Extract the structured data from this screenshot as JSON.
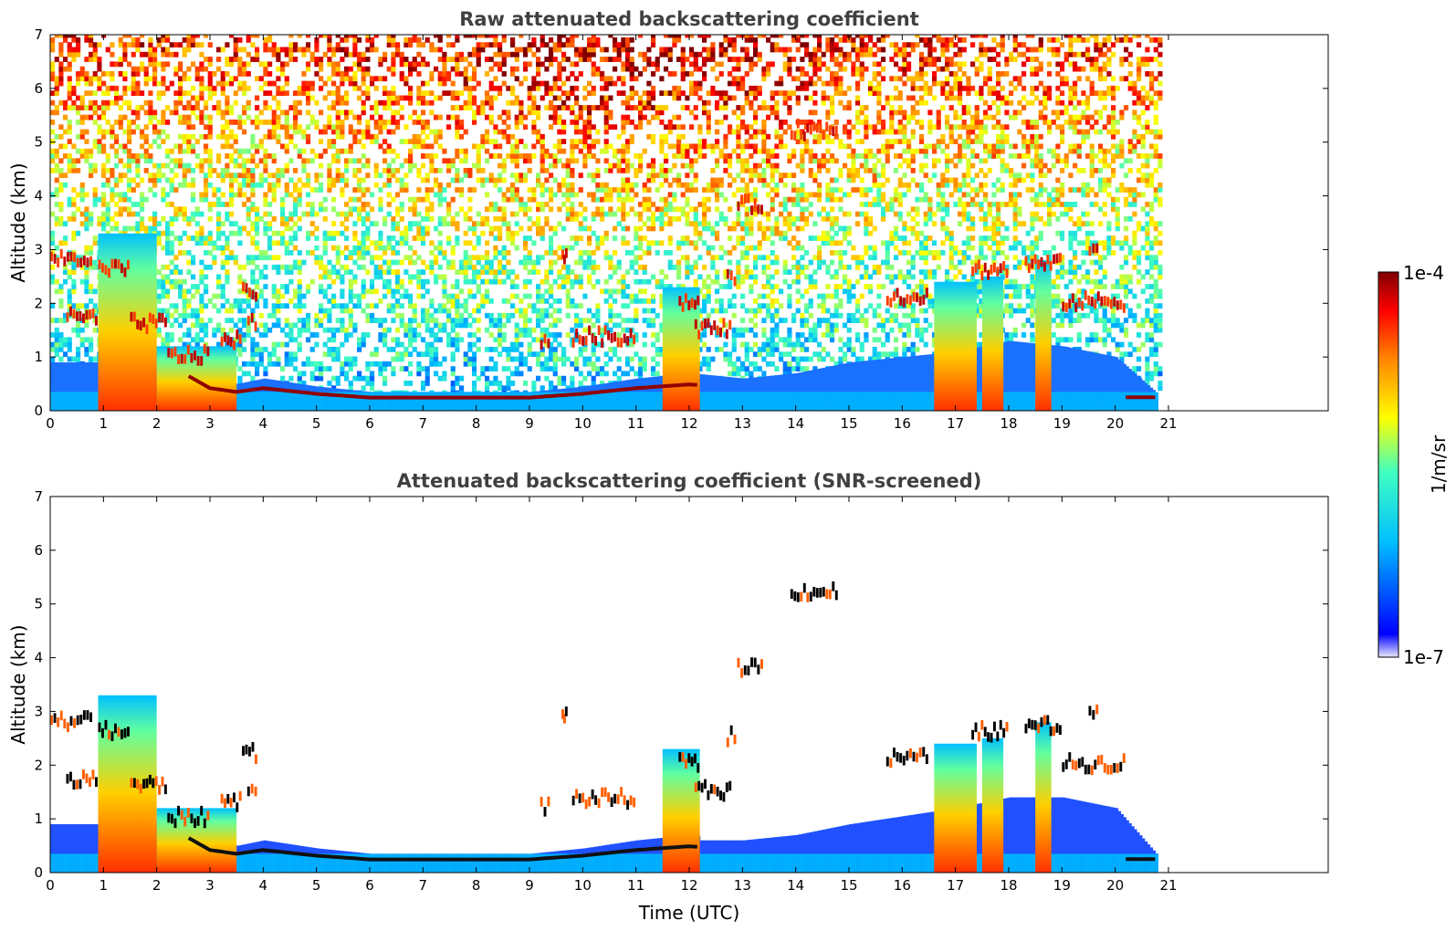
{
  "chart_data": [
    {
      "type": "heatmap",
      "title": "Raw attenuated backscattering coefficient",
      "xlabel": "",
      "ylabel": "Altitude (km)",
      "xlim": [
        0,
        24
      ],
      "ylim": [
        0,
        7
      ],
      "xticks": [
        "0",
        "1",
        "2",
        "3",
        "4",
        "5",
        "6",
        "7",
        "8",
        "9",
        "10",
        "11",
        "12",
        "13",
        "14",
        "15",
        "16",
        "17",
        "18",
        "19",
        "20",
        "21"
      ],
      "yticks": [
        "0",
        "1",
        "2",
        "3",
        "4",
        "5",
        "6",
        "7"
      ],
      "data_extent_x": [
        0,
        20.8
      ],
      "boundary_layer_top_km": [
        [
          0,
          0.9
        ],
        [
          1,
          0.9
        ],
        [
          2,
          1.0
        ],
        [
          2.5,
          1.0
        ],
        [
          3,
          0.6
        ],
        [
          3.5,
          0.5
        ],
        [
          4,
          0.6
        ],
        [
          5,
          0.45
        ],
        [
          6,
          0.35
        ],
        [
          7,
          0.35
        ],
        [
          8,
          0.35
        ],
        [
          9,
          0.35
        ],
        [
          10,
          0.45
        ],
        [
          11,
          0.6
        ],
        [
          12,
          0.7
        ],
        [
          13,
          0.6
        ],
        [
          14,
          0.7
        ],
        [
          15,
          0.9
        ],
        [
          16,
          1.0
        ],
        [
          17,
          1.1
        ],
        [
          18,
          1.3
        ],
        [
          19,
          1.2
        ],
        [
          20,
          1.0
        ],
        [
          20.8,
          0.3
        ]
      ],
      "cloud_features": [
        {
          "x0": 0,
          "x1": 0.8,
          "alt_km": 2.8
        },
        {
          "x0": 0.3,
          "x1": 0.9,
          "alt_km": 1.7
        },
        {
          "x0": 0.9,
          "x1": 1.5,
          "alt_km": 2.6
        },
        {
          "x0": 1.5,
          "x1": 2.2,
          "alt_km": 1.6
        },
        {
          "x0": 2.2,
          "x1": 3.0,
          "alt_km": 1.0
        },
        {
          "x0": 3.2,
          "x1": 3.6,
          "alt_km": 1.3
        },
        {
          "x0": 3.7,
          "x1": 3.9,
          "alt_km": 1.6
        },
        {
          "x0": 3.6,
          "x1": 3.9,
          "alt_km": 2.2
        },
        {
          "x0": 9.2,
          "x1": 9.4,
          "alt_km": 1.2
        },
        {
          "x0": 9.8,
          "x1": 11.0,
          "alt_km": 1.35
        },
        {
          "x0": 11.8,
          "x1": 12.2,
          "alt_km": 2.0
        },
        {
          "x0": 12.1,
          "x1": 12.8,
          "alt_km": 1.5
        },
        {
          "x0": 12.7,
          "x1": 12.9,
          "alt_km": 2.5
        },
        {
          "x0": 12.9,
          "x1": 13.4,
          "alt_km": 3.8
        },
        {
          "x0": 13.9,
          "x1": 14.8,
          "alt_km": 5.2
        },
        {
          "x0": 9.6,
          "x1": 9.7,
          "alt_km": 2.9
        },
        {
          "x0": 15.7,
          "x1": 16.5,
          "alt_km": 2.1
        },
        {
          "x0": 17.3,
          "x1": 18.0,
          "alt_km": 2.6
        },
        {
          "x0": 18.3,
          "x1": 19.0,
          "alt_km": 2.7
        },
        {
          "x0": 19.0,
          "x1": 20.2,
          "alt_km": 2.0
        },
        {
          "x0": 19.5,
          "x1": 19.7,
          "alt_km": 3.0
        }
      ],
      "intense_columns": [
        {
          "x0": 0.9,
          "x1": 2.0,
          "top_km": 3.3
        },
        {
          "x0": 2.0,
          "x1": 3.5,
          "top_km": 1.2
        },
        {
          "x0": 11.5,
          "x1": 12.2,
          "top_km": 2.3
        },
        {
          "x0": 16.6,
          "x1": 17.4,
          "top_km": 2.4
        },
        {
          "x0": 17.5,
          "x1": 17.9,
          "top_km": 2.5
        },
        {
          "x0": 18.5,
          "x1": 18.8,
          "top_km": 2.8
        }
      ]
    },
    {
      "type": "heatmap",
      "title": "Attenuated backscattering coefficient (SNR-screened)",
      "xlabel": "Time (UTC)",
      "ylabel": "Altitude (km)",
      "xlim": [
        0,
        24
      ],
      "ylim": [
        0,
        7
      ],
      "xticks": [
        "0",
        "1",
        "2",
        "3",
        "4",
        "5",
        "6",
        "7",
        "8",
        "9",
        "10",
        "11",
        "12",
        "13",
        "14",
        "15",
        "16",
        "17",
        "18",
        "19",
        "20",
        "21"
      ],
      "yticks": [
        "0",
        "1",
        "2",
        "3",
        "4",
        "5",
        "6",
        "7"
      ],
      "data_extent_x": [
        0,
        20.8
      ],
      "screened_blue_layer": [
        [
          12.2,
          0.6
        ],
        [
          13,
          0.6
        ],
        [
          14,
          0.7
        ],
        [
          15,
          0.9
        ],
        [
          16,
          1.05
        ],
        [
          17,
          1.2
        ],
        [
          18,
          1.4
        ],
        [
          19,
          1.4
        ],
        [
          20,
          1.2
        ],
        [
          20.8,
          0.3
        ]
      ]
    }
  ],
  "colorbar": {
    "label": "1/m/sr",
    "max_label": "1e-4",
    "min_label": "1e-7",
    "colormap": "jet",
    "colors": [
      "#e8e8ff",
      "#0000ff",
      "#00bfff",
      "#40ffc0",
      "#ffff00",
      "#ff8000",
      "#ff0000",
      "#800000"
    ]
  }
}
